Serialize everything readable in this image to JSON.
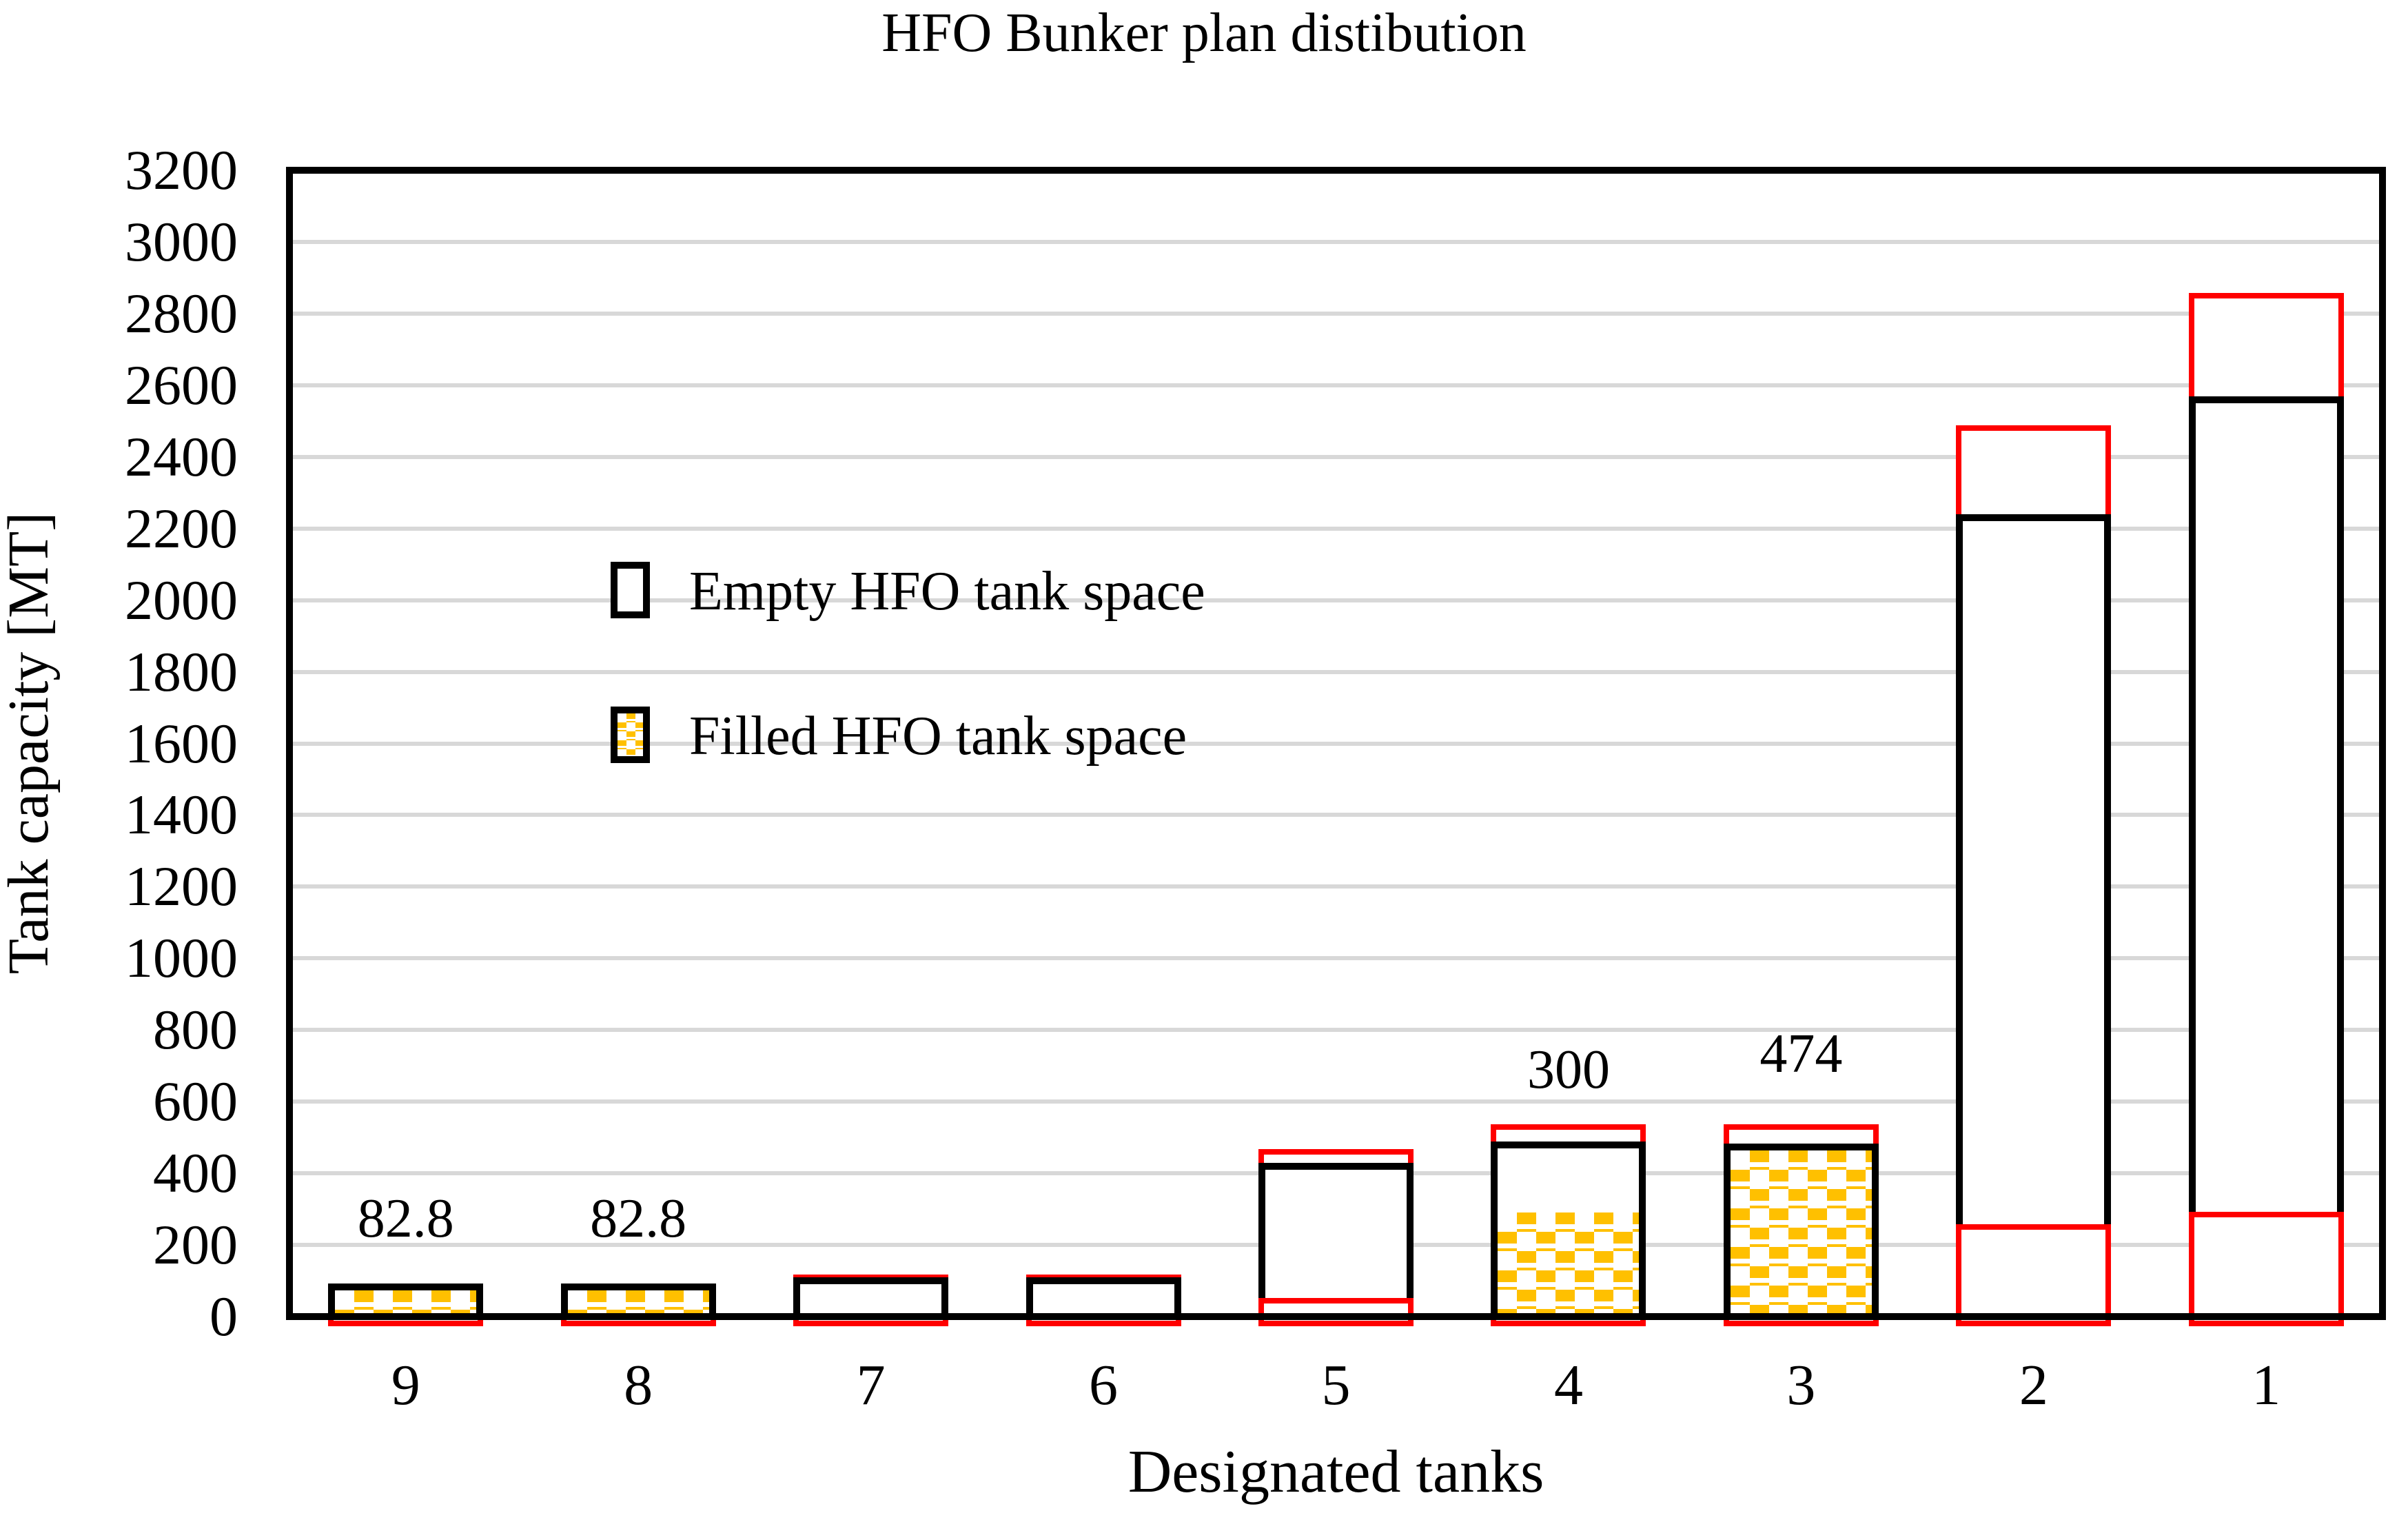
{
  "title": "HFO Bunker plan distibution",
  "colors": {
    "filled_pattern": "#FFC000",
    "red_outline": "#FF0000",
    "bar_border": "#000000",
    "gridline": "#D8D8D8",
    "background": "#FFFFFF"
  },
  "legend": {
    "empty_label": "Empty HFO tank space",
    "filled_label": "Filled HFO tank space"
  },
  "chart_data": {
    "type": "bar",
    "title": "HFO Bunker plan distibution",
    "xlabel": "Designated tanks",
    "ylabel": "Tank capacity [MT]",
    "ylim": [
      0,
      3200
    ],
    "ytick_step": 200,
    "ytick_labels": [
      "0",
      "200",
      "400",
      "600",
      "800",
      "1000",
      "1200",
      "1400",
      "1600",
      "1800",
      "2000",
      "2200",
      "2400",
      "2600",
      "2800",
      "3000",
      "3200"
    ],
    "grid": "horizontal-gray",
    "legend_position": "inside-top-left",
    "legend_entries": [
      {
        "label": "Empty HFO tank space",
        "swatch": "empty-white-black-border"
      },
      {
        "label": "Filled HFO tank space",
        "swatch": "filled-gold-checker"
      }
    ],
    "categories": [
      "9",
      "8",
      "7",
      "6",
      "5",
      "4",
      "3",
      "2",
      "1"
    ],
    "tanks": [
      {
        "tank": "9",
        "black_capacity": 82.8,
        "filled": 82.8,
        "red_outline_top": 82.8,
        "red_bottom_box": 0
      },
      {
        "tank": "8",
        "black_capacity": 82.8,
        "filled": 82.8,
        "red_outline_top": 82.8,
        "red_bottom_box": 0
      },
      {
        "tank": "7",
        "black_capacity": 100,
        "filled": 0,
        "red_outline_top": 110,
        "red_bottom_box": 0
      },
      {
        "tank": "6",
        "black_capacity": 100,
        "filled": 0,
        "red_outline_top": 110,
        "red_bottom_box": 0
      },
      {
        "tank": "5",
        "black_capacity": 420,
        "filled": 0,
        "red_outline_top": 460,
        "red_bottom_box": 45
      },
      {
        "tank": "4",
        "black_capacity": 480,
        "filled": 300,
        "red_outline_top": 530,
        "red_bottom_box": 0
      },
      {
        "tank": "3",
        "black_capacity": 474,
        "filled": 474,
        "red_outline_top": 530,
        "red_bottom_box": 0
      },
      {
        "tank": "2",
        "black_capacity": 2230,
        "filled": 0,
        "red_outline_top": 2480,
        "red_bottom_box": 250
      },
      {
        "tank": "1",
        "black_capacity": 2560,
        "filled": 0,
        "red_outline_top": 2850,
        "red_bottom_box": 285
      }
    ],
    "annotations": [
      {
        "text": "82.8",
        "tank": "9",
        "y": 195
      },
      {
        "text": "82.8",
        "tank": "8",
        "y": 195
      },
      {
        "text": "300",
        "tank": "4",
        "y": 610
      },
      {
        "text": "474",
        "tank": "3",
        "y": 655
      }
    ]
  }
}
